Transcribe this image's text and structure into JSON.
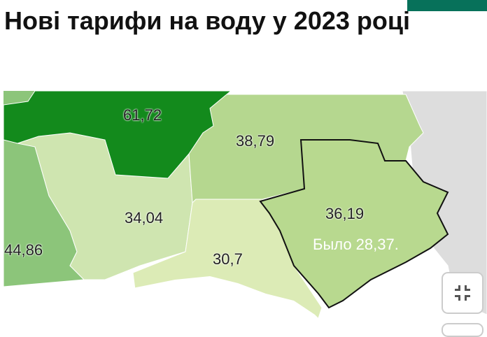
{
  "title": "Нові тарифи на воду у 2023 році",
  "map": {
    "colors": {
      "dark": "#138a1c",
      "medium": "#8cc57a",
      "light": "#cfe5b0",
      "lighter": "#dcebb6",
      "mid2": "#b5d78f",
      "other": "#dddddd",
      "border": "#111111"
    },
    "regions": [
      {
        "value": "61,72"
      },
      {
        "value": "38,79"
      },
      {
        "value": "34,04"
      },
      {
        "value": "36,19",
        "note": "Было 28,37."
      },
      {
        "value": "44,86"
      },
      {
        "value": "30,7"
      }
    ]
  },
  "controls": {
    "fullscreen_icon": "exit-fullscreen-icon"
  }
}
